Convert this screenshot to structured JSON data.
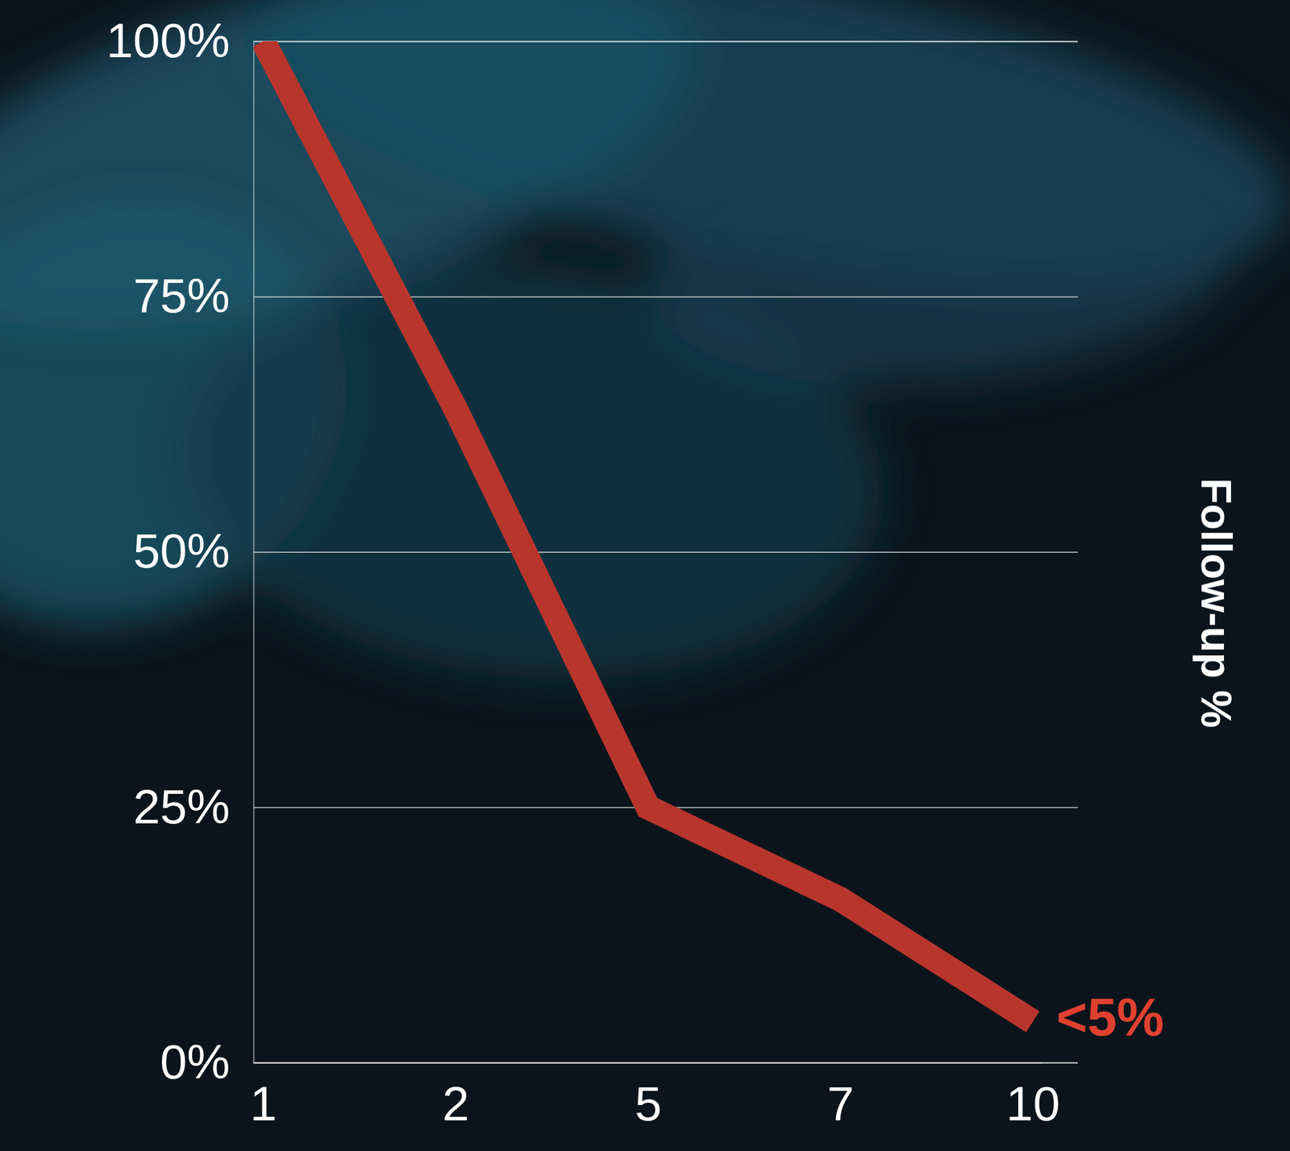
{
  "chart_data": {
    "type": "line",
    "categories": [
      "1",
      "2",
      "5",
      "7",
      "10"
    ],
    "values": [
      100,
      64,
      25,
      16,
      4
    ],
    "color": "#b8352c",
    "y_label": "Follow-up %",
    "annotation": "<5%",
    "ylim": [
      0,
      100
    ],
    "yticks": [
      {
        "value": 0,
        "label": "0%"
      },
      {
        "value": 25,
        "label": "25%"
      },
      {
        "value": 50,
        "label": "50%"
      },
      {
        "value": 75,
        "label": "75%"
      },
      {
        "value": 100,
        "label": "100%"
      }
    ],
    "grid": true
  }
}
